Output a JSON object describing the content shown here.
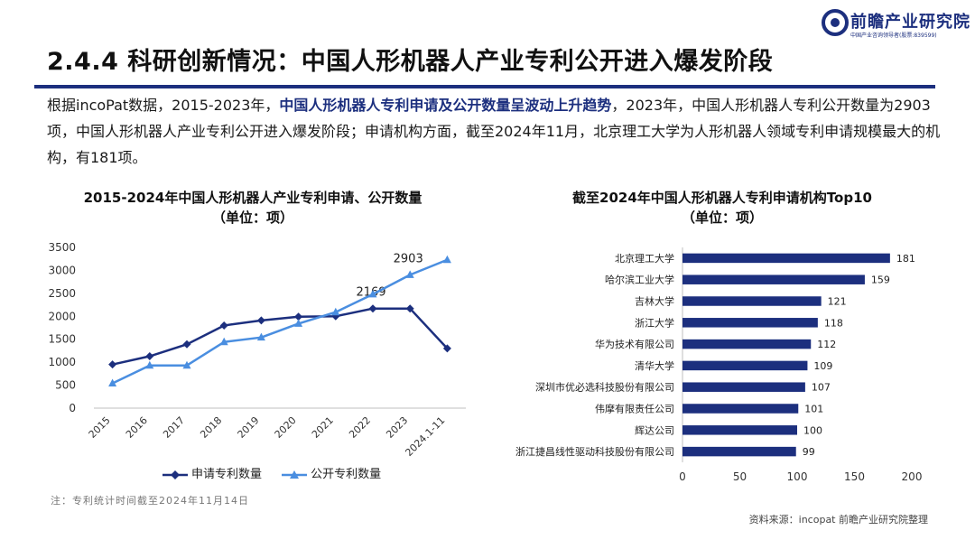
{
  "brand": {
    "name": "前瞻产业研究院",
    "tagline": "中国产业咨询领导者(股票:839599)",
    "color": "#1c2f7e"
  },
  "page_title": "2.4.4 科研创新情况：中国人形机器人产业专利公开进入爆发阶段",
  "summary": {
    "part1": "根据incoPat数据，2015-2023年，",
    "highlight": "中国人形机器人专利申请及公开数量呈波动上升趋势",
    "part2": "，2023年，中国人形机器人专利公开数量为2903项，中国人形机器人产业专利公开进入爆发阶段；申请机构方面，截至2024年11月，北京理工大学为人形机器人领域专利申请规模最大的机构，有181项。"
  },
  "chart_data": [
    {
      "type": "line",
      "title": "2015-2024年中国人形机器人产业专利申请、公开数量",
      "subtitle": "（单位：项）",
      "xlabel": "",
      "ylabel": "",
      "x": [
        "2015",
        "2016",
        "2017",
        "2018",
        "2019",
        "2020",
        "2021",
        "2022",
        "2023",
        "2024.1-11"
      ],
      "ylim": [
        0,
        3500
      ],
      "yticks": [
        "0",
        "500",
        "1000",
        "1500",
        "2000",
        "2500",
        "3000",
        "3500"
      ],
      "grid": false,
      "legend_position": "bottom",
      "series": [
        {
          "name": "申请专利数量",
          "color": "#1c2f7e",
          "marker": "diamond",
          "values": [
            950,
            1130,
            1390,
            1800,
            1910,
            1990,
            2000,
            2169,
            2169,
            1300
          ],
          "labels": {
            "7": "2169"
          }
        },
        {
          "name": "公开专利数量",
          "color": "#4a8ee0",
          "marker": "triangle",
          "values": [
            540,
            930,
            930,
            1440,
            1540,
            1840,
            2090,
            2480,
            2903,
            3230
          ],
          "labels": {
            "8": "2903"
          }
        }
      ]
    },
    {
      "type": "bar",
      "orientation": "horizontal",
      "title": "截至2024年中国人形机器人专利申请机构Top10",
      "subtitle": "（单位：项）",
      "xlabel": "",
      "ylabel": "",
      "categories": [
        "北京理工大学",
        "哈尔滨工业大学",
        "吉林大学",
        "浙江大学",
        "华为技术有限公司",
        "清华大学",
        "深圳市优必选科技股份有限公司",
        "伟摩有限责任公司",
        "辉达公司",
        "浙江捷昌线性驱动科技股份有限公司"
      ],
      "values": [
        181,
        159,
        121,
        118,
        112,
        109,
        107,
        101,
        100,
        99
      ],
      "xlim": [
        0,
        200
      ],
      "xticks": [
        "0",
        "50",
        "100",
        "150",
        "200"
      ],
      "grid": false,
      "color": "#1c2f7e"
    }
  ],
  "footnote": "注：专利统计时间截至2024年11月14日",
  "source": "资料来源：incopat 前瞻产业研究院整理"
}
